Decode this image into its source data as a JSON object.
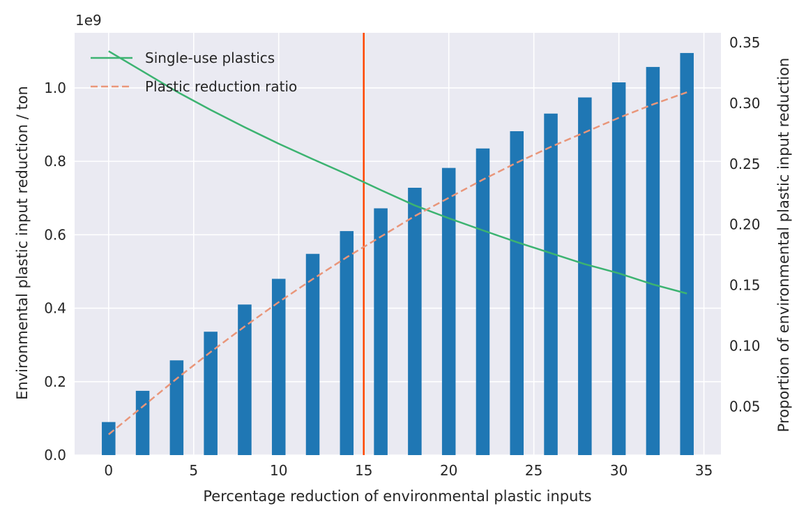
{
  "chart_data": {
    "type": "bar",
    "xlabel": "Percentage reduction of environmental plastic inputs",
    "ylabel": "Environmental plastic input reduction / ton",
    "ylabel_right": "Proportion of environmental plastic input reduction",
    "y_offset_text": "1e9",
    "xlim": [
      -2,
      36
    ],
    "ylim": [
      0,
      1.15
    ],
    "ylim_right": [
      0.01,
      0.358
    ],
    "x_ticks": [
      0,
      5,
      10,
      15,
      20,
      25,
      30,
      35
    ],
    "y_ticks": [
      0.0,
      0.2,
      0.4,
      0.6,
      0.8,
      1.0
    ],
    "y_ticks_right": [
      0.05,
      0.1,
      0.15,
      0.2,
      0.25,
      0.3,
      0.35
    ],
    "x_tick_labels": [
      "0",
      "5",
      "10",
      "15",
      "20",
      "25",
      "30",
      "35"
    ],
    "y_tick_labels": [
      "0.0",
      "0.2",
      "0.4",
      "0.6",
      "0.8",
      "1.0"
    ],
    "y_tick_labels_right": [
      "0.05",
      "0.10",
      "0.15",
      "0.20",
      "0.25",
      "0.30",
      "0.35"
    ],
    "grid": true,
    "legend_position": "top-left",
    "vline": {
      "x": 15,
      "color": "#ff4500"
    },
    "bars": {
      "color": "#1f77b4",
      "x": [
        0,
        2,
        4,
        6,
        8,
        10,
        12,
        14,
        16,
        18,
        20,
        22,
        24,
        26,
        28,
        30,
        32,
        34
      ],
      "values": [
        0.09,
        0.175,
        0.258,
        0.336,
        0.41,
        0.48,
        0.548,
        0.61,
        0.672,
        0.728,
        0.782,
        0.835,
        0.882,
        0.93,
        0.974,
        1.015,
        1.057,
        1.095
      ]
    },
    "series": [
      {
        "name": "Single-use plastics",
        "axis": "left",
        "style": "solid",
        "color": "#3cb371",
        "x": [
          0,
          2,
          4,
          6,
          8,
          10,
          12,
          14,
          16,
          18,
          20,
          22,
          24,
          26,
          28,
          30,
          32,
          34
        ],
        "values": [
          1.1,
          1.045,
          0.99,
          0.94,
          0.893,
          0.848,
          0.806,
          0.765,
          0.722,
          0.68,
          0.645,
          0.612,
          0.58,
          0.55,
          0.52,
          0.495,
          0.465,
          0.44
        ]
      },
      {
        "name": "Plastic reduction ratio",
        "axis": "right",
        "style": "dashed",
        "color": "#e9967a",
        "x": [
          0,
          2,
          4,
          6,
          8,
          10,
          12,
          14,
          16,
          18,
          20,
          22,
          24,
          26,
          28,
          30,
          32,
          34
        ],
        "values": [
          0.027,
          0.05,
          0.073,
          0.095,
          0.116,
          0.136,
          0.155,
          0.173,
          0.19,
          0.207,
          0.222,
          0.237,
          0.251,
          0.264,
          0.276,
          0.288,
          0.299,
          0.309
        ]
      }
    ]
  }
}
